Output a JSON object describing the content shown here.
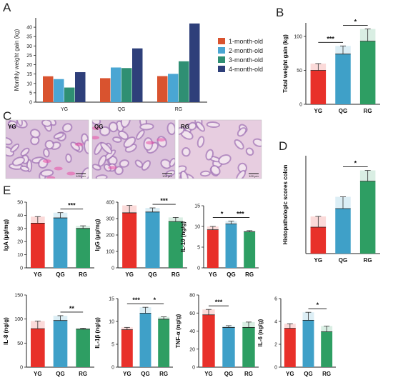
{
  "panel_letters": {
    "A": "A",
    "B": "B",
    "C": "C",
    "D": "D",
    "E": "E"
  },
  "colors": {
    "YG": "#e8302a",
    "QG": "#3fa0c8",
    "RG": "#2e9e63",
    "A1": "#d9532f",
    "A2": "#4aa6d3",
    "A3": "#2f8f73",
    "A4": "#2e3f7a"
  },
  "chart_data": [
    {
      "id": "A",
      "type": "bar",
      "ylabel": "Monthly weight gain (kg)",
      "categories": [
        "YG",
        "QG",
        "RG"
      ],
      "ylim": [
        0,
        45
      ],
      "yticks": [
        0,
        5,
        10,
        15,
        20,
        25,
        30,
        35,
        40
      ],
      "legend_position": "right",
      "series": [
        {
          "name": "1-month-old",
          "values": [
            13.8,
            12.8,
            13.9
          ]
        },
        {
          "name": "2-month-old",
          "values": [
            12.3,
            18.5,
            15.1
          ]
        },
        {
          "name": "3-month-old",
          "values": [
            7.8,
            18.2,
            21.8
          ]
        },
        {
          "name": "4-month-old",
          "values": [
            16.0,
            28.7,
            42.0
          ]
        }
      ]
    },
    {
      "id": "B",
      "type": "bar",
      "ylabel": "Total weight gain (kg)",
      "categories": [
        "YG",
        "QG",
        "RG"
      ],
      "ylim": [
        0,
        120
      ],
      "yticks": [
        0,
        50,
        100
      ],
      "values": [
        50,
        74,
        93
      ],
      "errors": [
        10,
        12,
        18
      ],
      "sig": [
        {
          "from": 0,
          "to": 1,
          "label": "***"
        },
        {
          "from": 1,
          "to": 2,
          "label": "*"
        }
      ]
    },
    {
      "id": "D",
      "type": "bar",
      "ylabel": "Histopathologic scores colon",
      "categories": [
        "YG",
        "QG",
        "RG"
      ],
      "ylim": [
        0,
        5
      ],
      "yticks": [],
      "values": [
        1.35,
        2.3,
        3.7
      ],
      "errors": [
        0.55,
        0.6,
        0.55
      ],
      "sig": [
        {
          "from": 1,
          "to": 2,
          "label": "*"
        }
      ]
    },
    {
      "id": "E1",
      "type": "bar",
      "ylabel": "IgA (μg/mg)",
      "categories": [
        "YG",
        "QG",
        "RG"
      ],
      "ylim": [
        0,
        50
      ],
      "yticks": [
        0,
        10,
        20,
        30,
        40,
        50
      ],
      "values": [
        34,
        38,
        30
      ],
      "errors": [
        5,
        4,
        2
      ],
      "sig": [
        {
          "from": 1,
          "to": 2,
          "label": "***"
        }
      ]
    },
    {
      "id": "E2",
      "type": "bar",
      "ylabel": "IgG (μg/mg)",
      "categories": [
        "YG",
        "QG",
        "RG"
      ],
      "ylim": [
        0,
        400
      ],
      "yticks": [
        0,
        100,
        200,
        300,
        400
      ],
      "values": [
        335,
        340,
        282
      ],
      "errors": [
        45,
        25,
        25
      ],
      "sig": [
        {
          "from": 1,
          "to": 2,
          "label": "***"
        }
      ]
    },
    {
      "id": "E3",
      "type": "bar",
      "ylabel": "IL-10 (ng/g)",
      "categories": [
        "YG",
        "QG",
        "RG"
      ],
      "ylim": [
        0,
        15
      ],
      "yticks": [
        0,
        5,
        10,
        15
      ],
      "values": [
        9.2,
        10.6,
        8.7
      ],
      "errors": [
        0.8,
        0.7,
        0.3
      ],
      "sig": [
        {
          "from": 0,
          "to": 1,
          "label": "*"
        },
        {
          "from": 1,
          "to": 2,
          "label": "***"
        }
      ]
    },
    {
      "id": "E4",
      "type": "bar",
      "ylabel": "IL-8 (ng/g)",
      "categories": [
        "YG",
        "QG",
        "RG"
      ],
      "ylim": [
        0,
        150
      ],
      "yticks": [
        0,
        50,
        100,
        150
      ],
      "values": [
        80,
        97,
        79
      ],
      "errors": [
        16,
        10,
        2
      ],
      "sig": [
        {
          "from": 1,
          "to": 2,
          "label": "**"
        }
      ]
    },
    {
      "id": "E5",
      "type": "bar",
      "ylabel": "IL-1β (ng/g)",
      "categories": [
        "YG",
        "QG",
        "RG"
      ],
      "ylim": [
        0,
        15
      ],
      "yticks": [
        0,
        5,
        10,
        15
      ],
      "values": [
        8.2,
        11.8,
        10.5
      ],
      "errors": [
        0.5,
        1.3,
        0.5
      ],
      "sig": [
        {
          "from": 0,
          "to": 1,
          "label": "***"
        },
        {
          "from": 1,
          "to": 2,
          "label": "*"
        }
      ]
    },
    {
      "id": "E6",
      "type": "bar",
      "ylabel": "TNF-α (ng/g)",
      "categories": [
        "YG",
        "QG",
        "RG"
      ],
      "ylim": [
        0,
        80
      ],
      "yticks": [
        0,
        20,
        40,
        60,
        80
      ],
      "values": [
        58,
        44,
        44
      ],
      "errors": [
        6,
        2,
        6
      ],
      "sig": [
        {
          "from": 0,
          "to": 1,
          "label": "***"
        }
      ]
    },
    {
      "id": "E7",
      "type": "bar",
      "ylabel": "IL-6 (ng/g)",
      "categories": [
        "YG",
        "QG",
        "RG"
      ],
      "ylim": [
        0,
        6
      ],
      "yticks": [
        0,
        2,
        4,
        6
      ],
      "values": [
        3.4,
        4.1,
        3.1
      ],
      "errors": [
        0.4,
        0.7,
        0.5
      ],
      "sig": [
        {
          "from": 1,
          "to": 2,
          "label": "*"
        }
      ]
    }
  ],
  "histology": {
    "panels": [
      {
        "label": "YG",
        "scale": "100 μm"
      },
      {
        "label": "QG",
        "scale": "100 μm"
      },
      {
        "label": "RG",
        "scale": "100 μm"
      }
    ]
  }
}
